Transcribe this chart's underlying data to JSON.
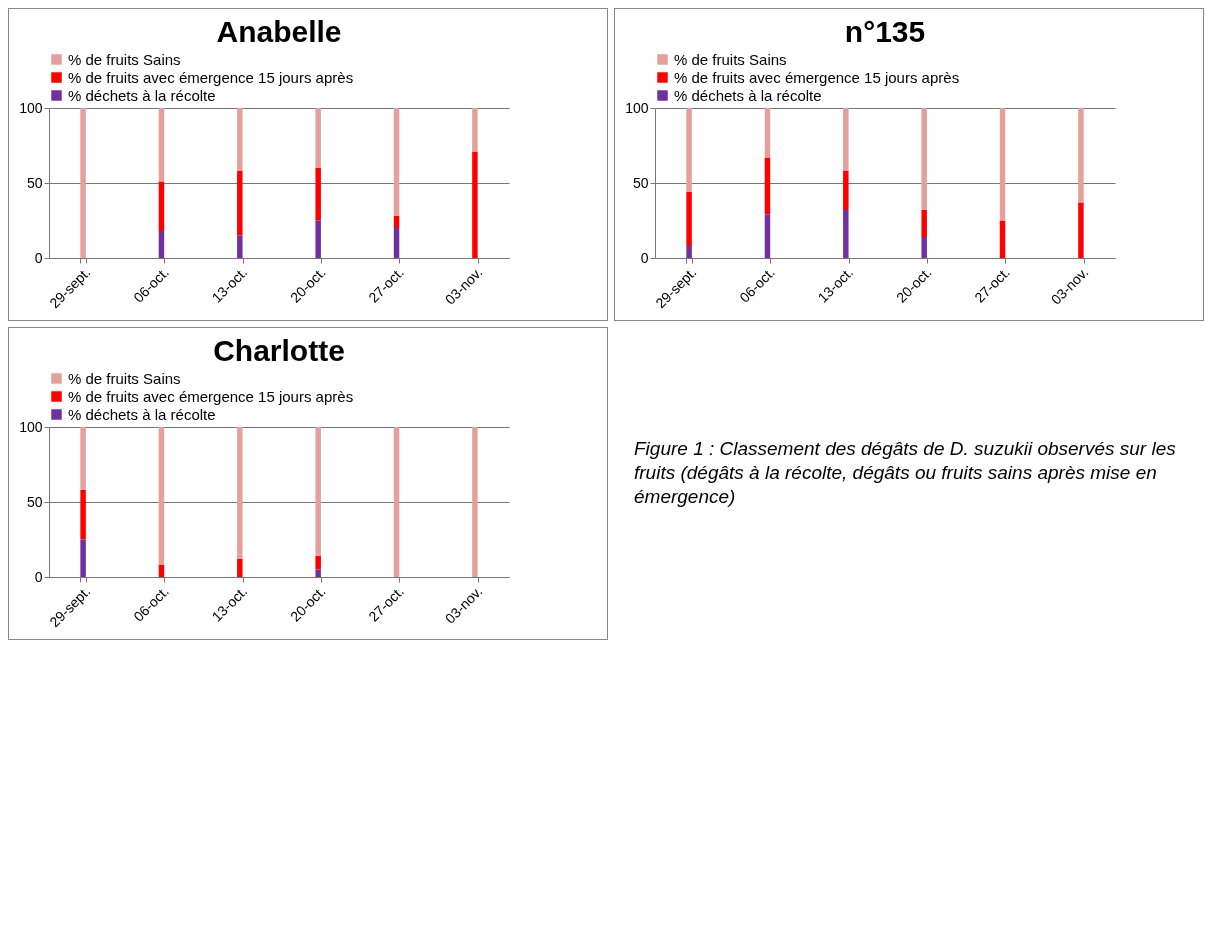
{
  "chart_data": [
    {
      "type": "bar",
      "title": "Anabelle",
      "stacked": true,
      "legend": "top",
      "grid": "y",
      "ylim": [
        0,
        100
      ],
      "yticks": [
        0,
        50,
        100
      ],
      "categories": [
        "29-sept.",
        "06-oct.",
        "13-oct.",
        "20-oct.",
        "27-oct.",
        "03-nov."
      ],
      "series": [
        {
          "name": "% déchets à la récolte",
          "color": "#7030a0",
          "values": [
            0,
            18,
            15,
            25,
            20,
            0
          ]
        },
        {
          "name": "% de fruits avec émergence 15 jours après",
          "color": "#ff0000",
          "values": [
            0,
            33,
            43,
            35,
            8,
            71
          ]
        },
        {
          "name": "% de fruits Sains",
          "color": "#e6a09c",
          "values": [
            100,
            49,
            42,
            40,
            72,
            29
          ]
        }
      ]
    },
    {
      "type": "bar",
      "title": "n°135",
      "stacked": true,
      "legend": "top",
      "grid": "y",
      "ylim": [
        0,
        100
      ],
      "yticks": [
        0,
        50,
        100
      ],
      "categories": [
        "29-sept.",
        "06-oct.",
        "13-oct.",
        "20-oct.",
        "27-oct.",
        "03-nov."
      ],
      "series": [
        {
          "name": "% déchets à la récolte",
          "color": "#7030a0",
          "values": [
            8,
            29,
            32,
            14,
            0,
            0
          ]
        },
        {
          "name": "% de fruits avec émergence 15 jours après",
          "color": "#ff0000",
          "values": [
            36,
            38,
            26,
            18,
            25,
            37
          ]
        },
        {
          "name": "% de fruits Sains",
          "color": "#e6a09c",
          "values": [
            56,
            33,
            42,
            68,
            75,
            63
          ]
        }
      ]
    },
    {
      "type": "bar",
      "title": "Charlotte",
      "stacked": true,
      "legend": "top",
      "grid": "y",
      "ylim": [
        0,
        100
      ],
      "yticks": [
        0,
        50,
        100
      ],
      "categories": [
        "29-sept.",
        "06-oct.",
        "13-oct.",
        "20-oct.",
        "27-oct.",
        "03-nov."
      ],
      "annotations": [
        "Figure 1 : Classement des dégâts de D. suzukii observés sur les fruits (dégâts à la récolte, dégâts ou fruits sains après mise en émergence)"
      ],
      "series": [
        {
          "name": "% déchets à la récolte",
          "color": "#7030a0",
          "values": [
            25,
            0,
            0,
            5,
            0,
            0
          ]
        },
        {
          "name": "% de fruits avec émergence 15 jours après",
          "color": "#ff0000",
          "values": [
            33,
            8,
            12,
            9,
            0,
            0
          ]
        },
        {
          "name": "% de fruits Sains",
          "color": "#e6a09c",
          "values": [
            42,
            92,
            88,
            86,
            100,
            100
          ]
        }
      ]
    }
  ]
}
